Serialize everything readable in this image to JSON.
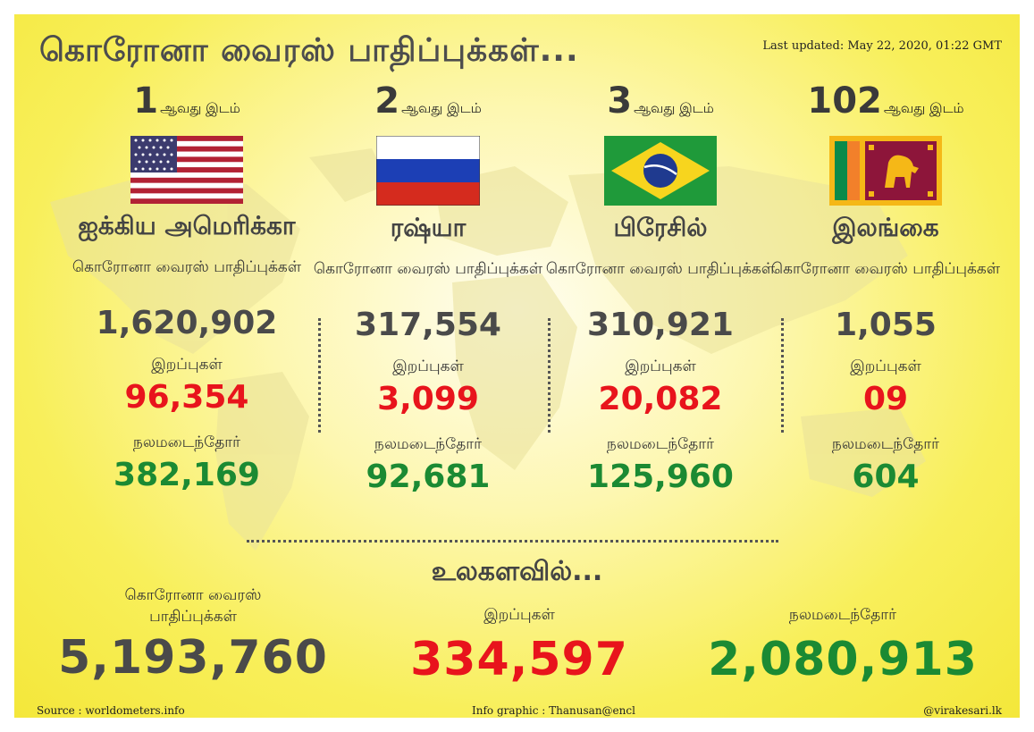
{
  "header": {
    "title": "கொரோனா வைரஸ் பாதிப்புக்கள்...",
    "last_updated": "Last updated: May 22, 2020, 01:22 GMT"
  },
  "labels": {
    "rank_suffix": "ஆவது இடம்",
    "cases": "கொரோனா வைரஸ் பாதிப்புக்கள்",
    "deaths": "இறப்புகள்",
    "recovered": "நலமடைந்தோர்"
  },
  "countries": [
    {
      "rank": "1",
      "name": "ஐக்கிய அமெரிக்கா",
      "flag": "usa-flag",
      "cases": "1,620,902",
      "deaths": "96,354",
      "recovered": "382,169"
    },
    {
      "rank": "2",
      "name": "ரஷ்யா",
      "flag": "russia-flag",
      "cases": "317,554",
      "deaths": "3,099",
      "recovered": "92,681"
    },
    {
      "rank": "3",
      "name": "பிரேசில்",
      "flag": "brazil-flag",
      "cases": "310,921",
      "deaths": "20,082",
      "recovered": "125,960"
    },
    {
      "rank": "102",
      "name": "இலங்கை",
      "flag": "sri-lanka-flag",
      "cases": "1,055",
      "deaths": "09",
      "recovered": "604"
    }
  ],
  "world": {
    "heading": "உலகளவில்...",
    "cases": "5,193,760",
    "deaths": "334,597",
    "recovered": "2,080,913"
  },
  "footer": {
    "source": "Source : worldometers.info",
    "credit": "Info graphic : Thanusan@encl",
    "handle": "@virakesari.lk"
  },
  "colors": {
    "deaths": "#e8141c",
    "recovered": "#1b8a33",
    "cases": "#4a4a4a",
    "background": "#f6ec4a"
  }
}
